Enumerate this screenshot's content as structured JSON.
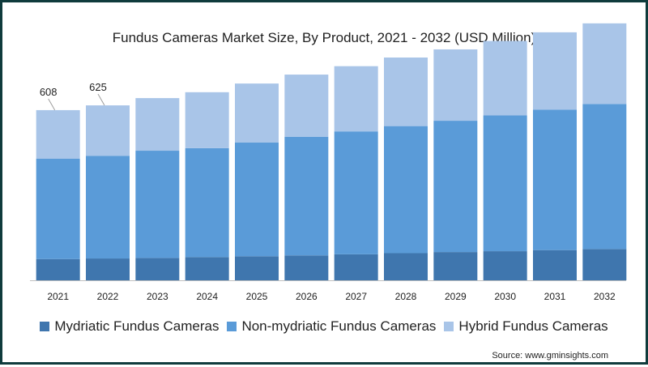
{
  "chart_data": {
    "type": "bar",
    "stacked": true,
    "title": "Fundus Cameras Market Size, By Product, 2021 - 2032 (USD Million)",
    "categories": [
      "2021",
      "2022",
      "2023",
      "2024",
      "2025",
      "2026",
      "2027",
      "2028",
      "2029",
      "2030",
      "2031",
      "2032"
    ],
    "series": [
      {
        "name": "Mydriatic Fundus Cameras",
        "color": "#3f76ae",
        "values": [
          76,
          78,
          80,
          83,
          86,
          89,
          93,
          97,
          101,
          104,
          108,
          112
        ]
      },
      {
        "name": "Non-mydriatic Fundus Cameras",
        "color": "#5a9bd8",
        "values": [
          359,
          367,
          383,
          389,
          406,
          424,
          439,
          454,
          469,
          485,
          502,
          518
        ]
      },
      {
        "name": "Hybrid Fundus Cameras",
        "color": "#a9c5e8",
        "values": [
          173,
          180,
          188,
          200,
          211,
          222,
          233,
          245,
          255,
          266,
          276,
          288
        ]
      }
    ],
    "data_labels": [
      {
        "category": "2021",
        "text": "608"
      },
      {
        "category": "2022",
        "text": "625"
      }
    ],
    "ylim": [
      0,
      1000
    ],
    "grid": false,
    "legend_position": "bottom"
  },
  "source": "Source: www.gminsights.com"
}
